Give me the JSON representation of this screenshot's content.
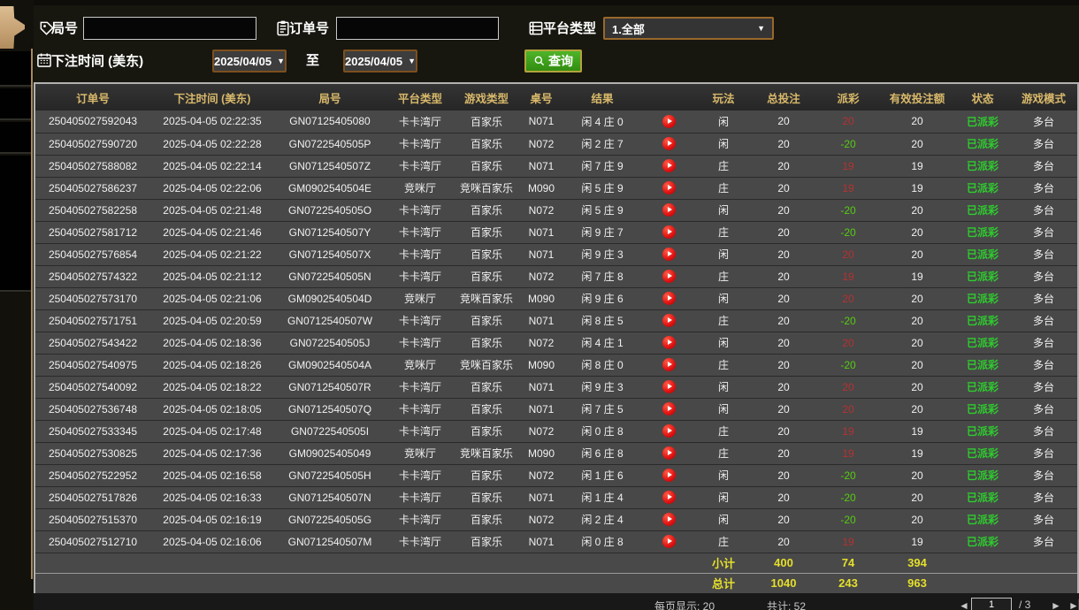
{
  "filters": {
    "game_no_label": "局号",
    "game_no_value": "",
    "order_no_label": "订单号",
    "order_no_value": "",
    "platform_type_label": "平台类型",
    "platform_type_value": "1.全部",
    "bet_time_label": "下注时间 (美东)",
    "date_from": "2025/04/05",
    "to_label": "至",
    "date_to": "2025/04/05",
    "search_label": "查询"
  },
  "table": {
    "columns": [
      "订单号",
      "下注时间 (美东)",
      "局号",
      "平台类型",
      "游戏类型",
      "桌号",
      "结果",
      "",
      "玩法",
      "总投注",
      "派彩",
      "有效投注额",
      "状态",
      "游戏模式"
    ],
    "rows": [
      {
        "order": "250405027592043",
        "time": "2025-04-05 02:22:35",
        "game": "GN07125405080",
        "platform": "卡卡湾厅",
        "game_type": "百家乐",
        "table_no": "N071",
        "result": "闲 4 庄 0",
        "play": "闲",
        "bet": "20",
        "payout": "20",
        "valid": "20",
        "status": "已派彩",
        "mode": "多台"
      },
      {
        "order": "250405027590720",
        "time": "2025-04-05 02:22:28",
        "game": "GN0722540505P",
        "platform": "卡卡湾厅",
        "game_type": "百家乐",
        "table_no": "N072",
        "result": "闲 2 庄 7",
        "play": "闲",
        "bet": "20",
        "payout": "-20",
        "valid": "20",
        "status": "已派彩",
        "mode": "多台"
      },
      {
        "order": "250405027588082",
        "time": "2025-04-05 02:22:14",
        "game": "GN0712540507Z",
        "platform": "卡卡湾厅",
        "game_type": "百家乐",
        "table_no": "N071",
        "result": "闲 7 庄 9",
        "play": "庄",
        "bet": "20",
        "payout": "19",
        "valid": "19",
        "status": "已派彩",
        "mode": "多台"
      },
      {
        "order": "250405027586237",
        "time": "2025-04-05 02:22:06",
        "game": "GM0902540504E",
        "platform": "竞咪厅",
        "game_type": "竞咪百家乐",
        "table_no": "M090",
        "result": "闲 5 庄 9",
        "play": "庄",
        "bet": "20",
        "payout": "19",
        "valid": "19",
        "status": "已派彩",
        "mode": "多台"
      },
      {
        "order": "250405027582258",
        "time": "2025-04-05 02:21:48",
        "game": "GN0722540505O",
        "platform": "卡卡湾厅",
        "game_type": "百家乐",
        "table_no": "N072",
        "result": "闲 5 庄 9",
        "play": "闲",
        "bet": "20",
        "payout": "-20",
        "valid": "20",
        "status": "已派彩",
        "mode": "多台"
      },
      {
        "order": "250405027581712",
        "time": "2025-04-05 02:21:46",
        "game": "GN0712540507Y",
        "platform": "卡卡湾厅",
        "game_type": "百家乐",
        "table_no": "N071",
        "result": "闲 9 庄 7",
        "play": "庄",
        "bet": "20",
        "payout": "-20",
        "valid": "20",
        "status": "已派彩",
        "mode": "多台"
      },
      {
        "order": "250405027576854",
        "time": "2025-04-05 02:21:22",
        "game": "GN0712540507X",
        "platform": "卡卡湾厅",
        "game_type": "百家乐",
        "table_no": "N071",
        "result": "闲 9 庄 3",
        "play": "闲",
        "bet": "20",
        "payout": "20",
        "valid": "20",
        "status": "已派彩",
        "mode": "多台"
      },
      {
        "order": "250405027574322",
        "time": "2025-04-05 02:21:12",
        "game": "GN0722540505N",
        "platform": "卡卡湾厅",
        "game_type": "百家乐",
        "table_no": "N072",
        "result": "闲 7 庄 8",
        "play": "庄",
        "bet": "20",
        "payout": "19",
        "valid": "19",
        "status": "已派彩",
        "mode": "多台"
      },
      {
        "order": "250405027573170",
        "time": "2025-04-05 02:21:06",
        "game": "GM0902540504D",
        "platform": "竞咪厅",
        "game_type": "竞咪百家乐",
        "table_no": "M090",
        "result": "闲 9 庄 6",
        "play": "闲",
        "bet": "20",
        "payout": "20",
        "valid": "20",
        "status": "已派彩",
        "mode": "多台"
      },
      {
        "order": "250405027571751",
        "time": "2025-04-05 02:20:59",
        "game": "GN0712540507W",
        "platform": "卡卡湾厅",
        "game_type": "百家乐",
        "table_no": "N071",
        "result": "闲 8 庄 5",
        "play": "庄",
        "bet": "20",
        "payout": "-20",
        "valid": "20",
        "status": "已派彩",
        "mode": "多台"
      },
      {
        "order": "250405027543422",
        "time": "2025-04-05 02:18:36",
        "game": "GN0722540505J",
        "platform": "卡卡湾厅",
        "game_type": "百家乐",
        "table_no": "N072",
        "result": "闲 4 庄 1",
        "play": "闲",
        "bet": "20",
        "payout": "20",
        "valid": "20",
        "status": "已派彩",
        "mode": "多台"
      },
      {
        "order": "250405027540975",
        "time": "2025-04-05 02:18:26",
        "game": "GM0902540504A",
        "platform": "竞咪厅",
        "game_type": "竞咪百家乐",
        "table_no": "M090",
        "result": "闲 8 庄 0",
        "play": "庄",
        "bet": "20",
        "payout": "-20",
        "valid": "20",
        "status": "已派彩",
        "mode": "多台"
      },
      {
        "order": "250405027540092",
        "time": "2025-04-05 02:18:22",
        "game": "GN0712540507R",
        "platform": "卡卡湾厅",
        "game_type": "百家乐",
        "table_no": "N071",
        "result": "闲 9 庄 3",
        "play": "闲",
        "bet": "20",
        "payout": "20",
        "valid": "20",
        "status": "已派彩",
        "mode": "多台"
      },
      {
        "order": "250405027536748",
        "time": "2025-04-05 02:18:05",
        "game": "GN0712540507Q",
        "platform": "卡卡湾厅",
        "game_type": "百家乐",
        "table_no": "N071",
        "result": "闲 7 庄 5",
        "play": "闲",
        "bet": "20",
        "payout": "20",
        "valid": "20",
        "status": "已派彩",
        "mode": "多台"
      },
      {
        "order": "250405027533345",
        "time": "2025-04-05 02:17:48",
        "game": "GN0722540505I",
        "platform": "卡卡湾厅",
        "game_type": "百家乐",
        "table_no": "N072",
        "result": "闲 0 庄 8",
        "play": "庄",
        "bet": "20",
        "payout": "19",
        "valid": "19",
        "status": "已派彩",
        "mode": "多台"
      },
      {
        "order": "250405027530825",
        "time": "2025-04-05 02:17:36",
        "game": "GM09025405049",
        "platform": "竞咪厅",
        "game_type": "竞咪百家乐",
        "table_no": "M090",
        "result": "闲 6 庄 8",
        "play": "庄",
        "bet": "20",
        "payout": "19",
        "valid": "19",
        "status": "已派彩",
        "mode": "多台"
      },
      {
        "order": "250405027522952",
        "time": "2025-04-05 02:16:58",
        "game": "GN0722540505H",
        "platform": "卡卡湾厅",
        "game_type": "百家乐",
        "table_no": "N072",
        "result": "闲 1 庄 6",
        "play": "闲",
        "bet": "20",
        "payout": "-20",
        "valid": "20",
        "status": "已派彩",
        "mode": "多台"
      },
      {
        "order": "250405027517826",
        "time": "2025-04-05 02:16:33",
        "game": "GN0712540507N",
        "platform": "卡卡湾厅",
        "game_type": "百家乐",
        "table_no": "N071",
        "result": "闲 1 庄 4",
        "play": "闲",
        "bet": "20",
        "payout": "-20",
        "valid": "20",
        "status": "已派彩",
        "mode": "多台"
      },
      {
        "order": "250405027515370",
        "time": "2025-04-05 02:16:19",
        "game": "GN0722540505G",
        "platform": "卡卡湾厅",
        "game_type": "百家乐",
        "table_no": "N072",
        "result": "闲 2 庄 4",
        "play": "闲",
        "bet": "20",
        "payout": "-20",
        "valid": "20",
        "status": "已派彩",
        "mode": "多台"
      },
      {
        "order": "250405027512710",
        "time": "2025-04-05 02:16:06",
        "game": "GN0712540507M",
        "platform": "卡卡湾厅",
        "game_type": "百家乐",
        "table_no": "N071",
        "result": "闲 0 庄 8",
        "play": "庄",
        "bet": "20",
        "payout": "19",
        "valid": "19",
        "status": "已派彩",
        "mode": "多台"
      }
    ],
    "subtotal": {
      "label": "小计",
      "bet": "400",
      "payout": "74",
      "valid": "394"
    },
    "total": {
      "label": "总计",
      "bet": "1040",
      "payout": "243",
      "valid": "963"
    }
  },
  "footer": {
    "per_page": "每页显示: 20",
    "total_count": "共计: 52",
    "prev_arrow": "◄",
    "page": "1",
    "page_of": "/ 3",
    "next_arrow": "►",
    "last_arrow": "►▏"
  },
  "colors": {
    "header_text": "#d9b96a",
    "payout_win": "#b63131",
    "payout_loss": "#55cc11",
    "status_paid": "#2ecc2e",
    "summary_text": "#e5df2b",
    "search_button": "#3aa317",
    "date_border": "#7c4f1d"
  }
}
